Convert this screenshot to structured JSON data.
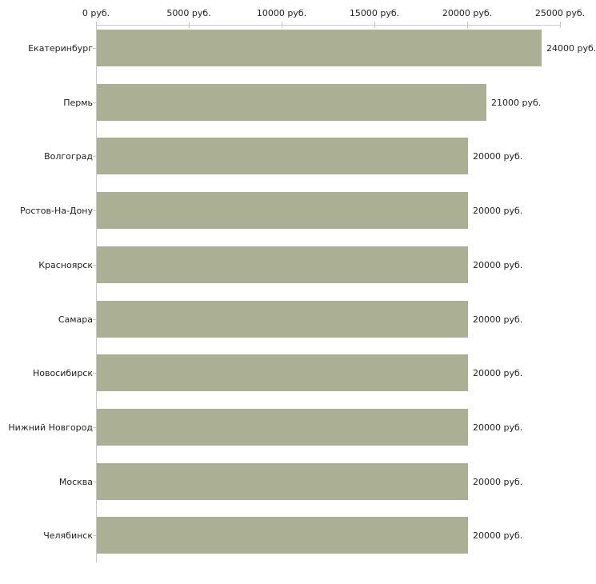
{
  "chart_data": {
    "type": "bar",
    "orientation": "horizontal",
    "title": "",
    "xlabel": "",
    "ylabel": "",
    "grid": false,
    "legend": null,
    "categories": [
      "Екатеринбург",
      "Пермь",
      "Волгоград",
      "Ростов-На-Дону",
      "Красноярск",
      "Самара",
      "Новосибирск",
      "Нижний Новгород",
      "Москва",
      "Челябинск"
    ],
    "values": [
      24000,
      21000,
      20000,
      20000,
      20000,
      20000,
      20000,
      20000,
      20000,
      20000
    ],
    "value_labels": [
      "24000 руб.",
      "21000 руб.",
      "20000 руб.",
      "20000 руб.",
      "20000 руб.",
      "20000 руб.",
      "20000 руб.",
      "20000 руб.",
      "20000 руб.",
      "20000 руб."
    ],
    "x_ticks": [
      0,
      5000,
      10000,
      15000,
      20000,
      25000
    ],
    "x_tick_labels": [
      "0 руб.",
      "5000 руб.",
      "10000 руб.",
      "15000 руб.",
      "20000 руб.",
      "25000 руб."
    ],
    "xlim": [
      0,
      25000
    ],
    "unit": "руб.",
    "colors": {
      "bar_fill": "#abb095",
      "axis_line": "#c9c9c9",
      "x_tick_mark": "#c9c9a2",
      "text": "#222222",
      "background": "#ffffff"
    }
  }
}
